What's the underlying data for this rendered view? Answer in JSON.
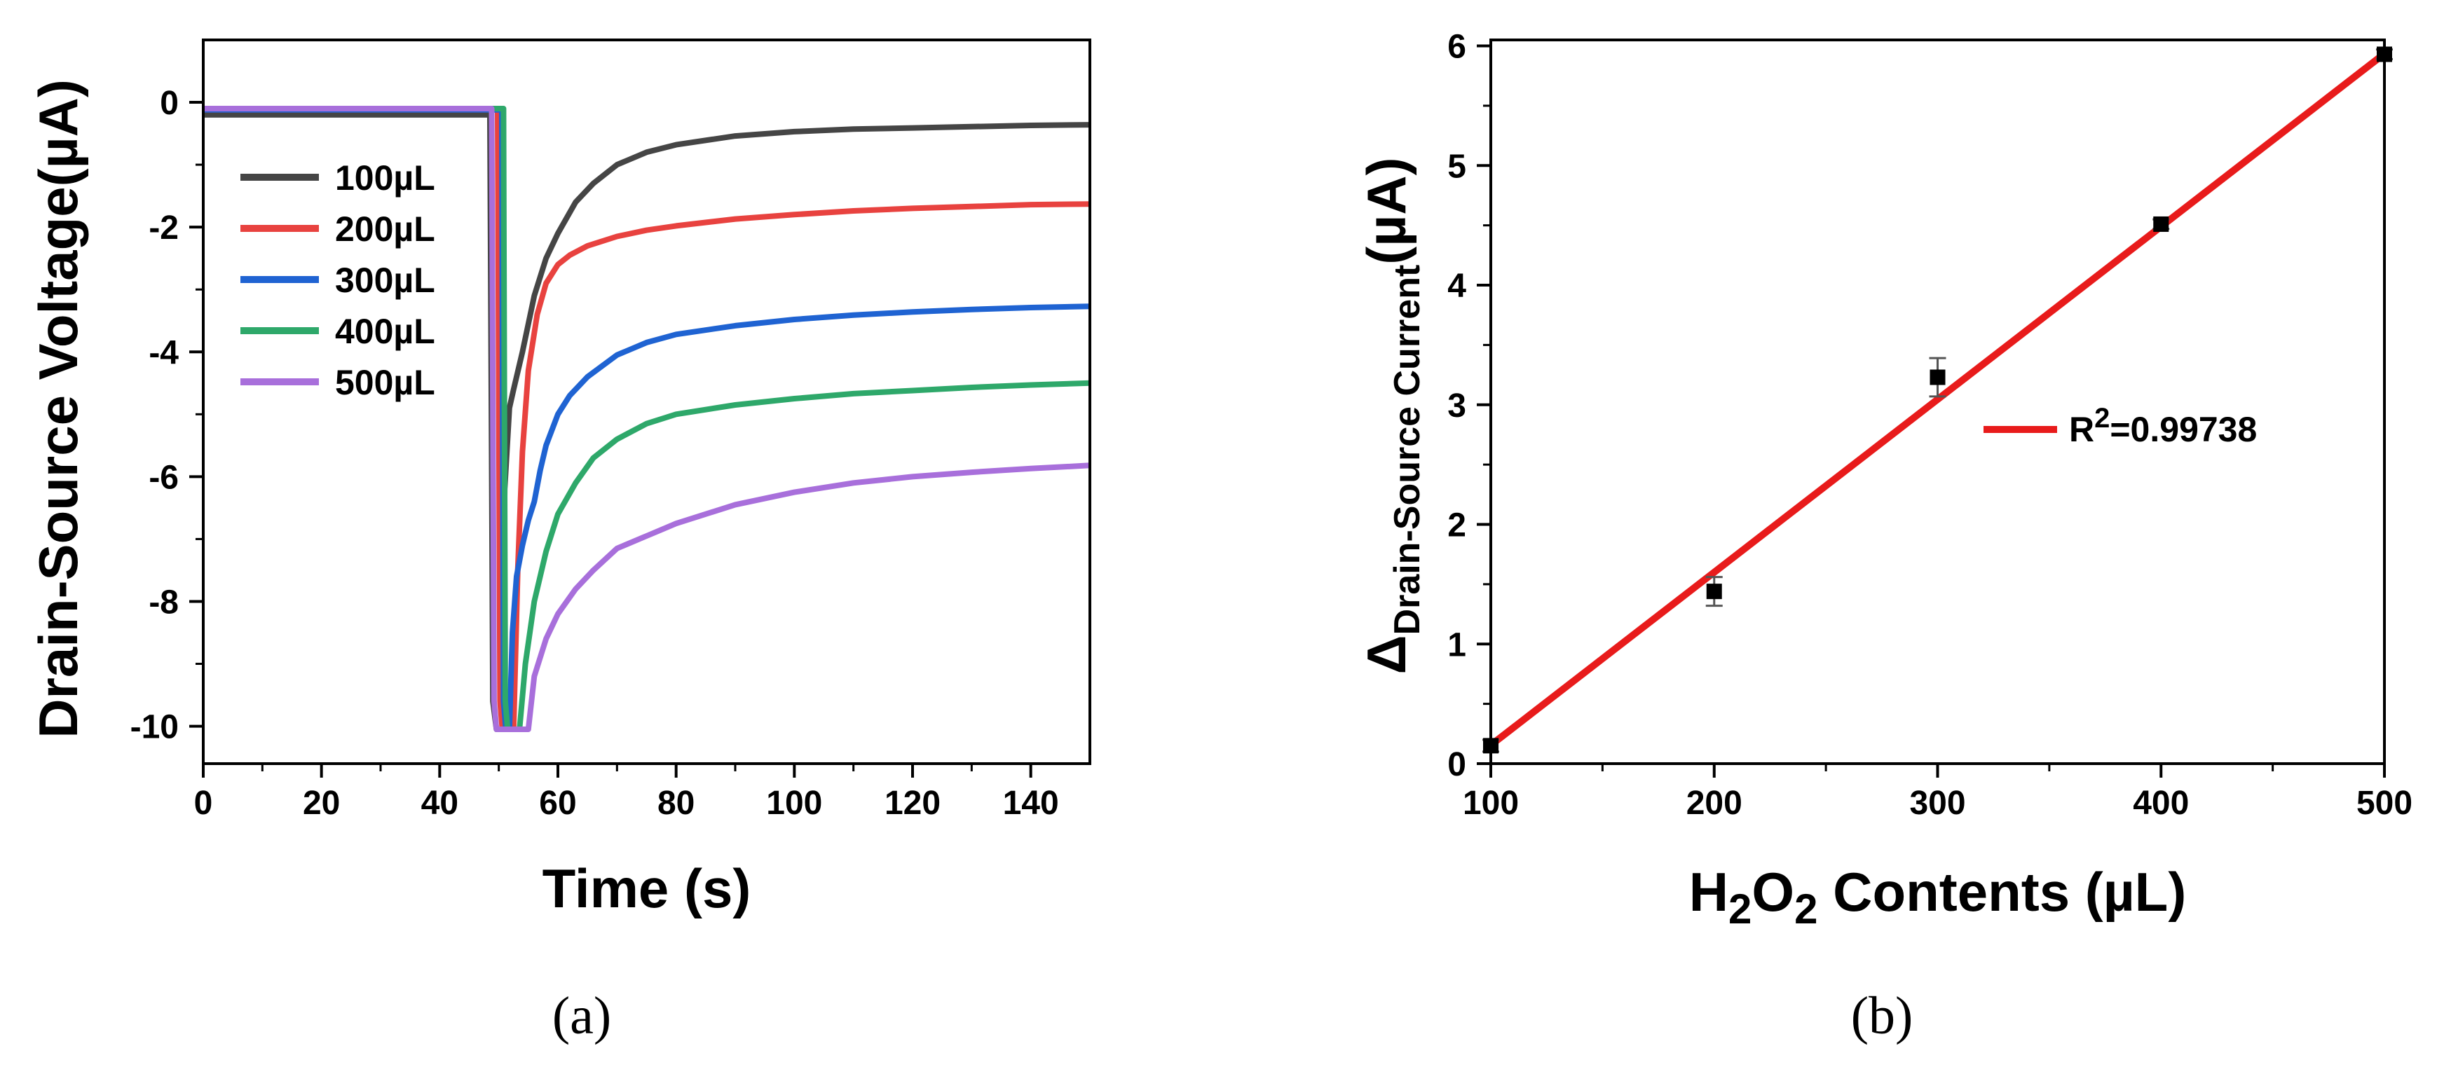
{
  "captions": {
    "a": "(a)",
    "b": "(b)"
  },
  "chart_data": [
    {
      "type": "line",
      "panel": "(a)",
      "title": "",
      "xlabel": "Time (s)",
      "ylabel": "Drain-Source Voltage(µA)",
      "xlim": [
        0,
        150
      ],
      "ylim": [
        -10.6,
        1.0
      ],
      "xticks": [
        0,
        20,
        40,
        60,
        80,
        100,
        120,
        140
      ],
      "yticks": [
        0,
        -2,
        -4,
        -6,
        -8,
        -10
      ],
      "legend_position": "upper-left",
      "series": [
        {
          "name": "100µL",
          "color": "#454545",
          "points": [
            [
              0,
              -0.2
            ],
            [
              48.5,
              -0.2
            ],
            [
              49,
              -9.6
            ],
            [
              49.6,
              -10.05
            ],
            [
              50.6,
              -10.05
            ],
            [
              51,
              -6.2
            ],
            [
              51.8,
              -4.9
            ],
            [
              52.5,
              -4.6
            ],
            [
              54,
              -4.0
            ],
            [
              56,
              -3.1
            ],
            [
              58,
              -2.5
            ],
            [
              60,
              -2.1
            ],
            [
              63,
              -1.6
            ],
            [
              66,
              -1.3
            ],
            [
              70,
              -1.0
            ],
            [
              75,
              -0.8
            ],
            [
              80,
              -0.68
            ],
            [
              90,
              -0.54
            ],
            [
              100,
              -0.47
            ],
            [
              110,
              -0.43
            ],
            [
              120,
              -0.41
            ],
            [
              130,
              -0.39
            ],
            [
              140,
              -0.37
            ],
            [
              150,
              -0.36
            ]
          ]
        },
        {
          "name": "200µL",
          "color": "#e8423f",
          "points": [
            [
              0,
              -0.12
            ],
            [
              49.8,
              -0.12
            ],
            [
              50.2,
              -9.6
            ],
            [
              50.6,
              -10.05
            ],
            [
              52.5,
              -10.05
            ],
            [
              53.2,
              -7.5
            ],
            [
              54,
              -5.6
            ],
            [
              55,
              -4.3
            ],
            [
              56.5,
              -3.4
            ],
            [
              58,
              -2.9
            ],
            [
              60,
              -2.6
            ],
            [
              62,
              -2.45
            ],
            [
              65,
              -2.3
            ],
            [
              70,
              -2.15
            ],
            [
              75,
              -2.05
            ],
            [
              80,
              -1.98
            ],
            [
              90,
              -1.87
            ],
            [
              100,
              -1.8
            ],
            [
              110,
              -1.74
            ],
            [
              120,
              -1.7
            ],
            [
              130,
              -1.67
            ],
            [
              140,
              -1.64
            ],
            [
              150,
              -1.63
            ]
          ]
        },
        {
          "name": "300µL",
          "color": "#1f63d2",
          "points": [
            [
              0,
              -0.12
            ],
            [
              50.5,
              -0.12
            ],
            [
              50.8,
              -9.6
            ],
            [
              51.2,
              -10.05
            ],
            [
              51.8,
              -10.05
            ],
            [
              52.3,
              -8.5
            ],
            [
              53,
              -7.6
            ],
            [
              54,
              -7.1
            ],
            [
              55,
              -6.7
            ],
            [
              56,
              -6.4
            ],
            [
              57,
              -5.9
            ],
            [
              58,
              -5.5
            ],
            [
              60,
              -5.0
            ],
            [
              62,
              -4.7
            ],
            [
              65,
              -4.4
            ],
            [
              70,
              -4.05
            ],
            [
              75,
              -3.85
            ],
            [
              80,
              -3.72
            ],
            [
              90,
              -3.58
            ],
            [
              100,
              -3.48
            ],
            [
              110,
              -3.41
            ],
            [
              120,
              -3.36
            ],
            [
              130,
              -3.32
            ],
            [
              140,
              -3.29
            ],
            [
              150,
              -3.27
            ]
          ]
        },
        {
          "name": "400µL",
          "color": "#2ea86a",
          "points": [
            [
              0,
              -0.1
            ],
            [
              50.8,
              -0.1
            ],
            [
              51.1,
              -9.6
            ],
            [
              51.5,
              -10.05
            ],
            [
              53.5,
              -10.05
            ],
            [
              54.5,
              -9.0
            ],
            [
              56,
              -8.0
            ],
            [
              58,
              -7.2
            ],
            [
              60,
              -6.6
            ],
            [
              63,
              -6.1
            ],
            [
              66,
              -5.7
            ],
            [
              70,
              -5.4
            ],
            [
              75,
              -5.15
            ],
            [
              80,
              -5.0
            ],
            [
              90,
              -4.85
            ],
            [
              100,
              -4.75
            ],
            [
              110,
              -4.67
            ],
            [
              120,
              -4.62
            ],
            [
              130,
              -4.57
            ],
            [
              140,
              -4.53
            ],
            [
              150,
              -4.5
            ]
          ]
        },
        {
          "name": "500µL",
          "color": "#a86fdb",
          "points": [
            [
              0,
              -0.1
            ],
            [
              48.8,
              -0.1
            ],
            [
              49.2,
              -9.6
            ],
            [
              49.6,
              -10.05
            ],
            [
              55,
              -10.05
            ],
            [
              56,
              -9.2
            ],
            [
              58,
              -8.6
            ],
            [
              60,
              -8.2
            ],
            [
              63,
              -7.8
            ],
            [
              66,
              -7.5
            ],
            [
              70,
              -7.15
            ],
            [
              75,
              -6.95
            ],
            [
              80,
              -6.75
            ],
            [
              90,
              -6.45
            ],
            [
              100,
              -6.25
            ],
            [
              110,
              -6.1
            ],
            [
              120,
              -6.0
            ],
            [
              130,
              -5.93
            ],
            [
              140,
              -5.87
            ],
            [
              150,
              -5.82
            ]
          ]
        }
      ]
    },
    {
      "type": "scatter",
      "panel": "(b)",
      "title": "",
      "xlabel_parts": [
        "H",
        "2",
        "O",
        "2",
        " Contents (µL)"
      ],
      "ylabel_parts": [
        "Δ",
        "Drain-Source Current",
        "(µA)"
      ],
      "xlim": [
        100,
        500
      ],
      "ylim": [
        0,
        6.05
      ],
      "xticks": [
        100,
        200,
        300,
        400,
        500
      ],
      "yticks": [
        0,
        1,
        2,
        3,
        4,
        5,
        6
      ],
      "points": [
        {
          "x": 100,
          "y": 0.15,
          "err": 0.05
        },
        {
          "x": 200,
          "y": 1.44,
          "err": 0.12
        },
        {
          "x": 300,
          "y": 3.23,
          "err": 0.16
        },
        {
          "x": 400,
          "y": 4.51,
          "err": 0.04
        },
        {
          "x": 500,
          "y": 5.93,
          "err": 0.04
        }
      ],
      "fit": {
        "slope": 0.01445,
        "intercept": -1.29,
        "color": "#e81b1b"
      },
      "legend": {
        "prefix": "R",
        "sup": "2",
        "suffix": "=0.99738",
        "position": "center-right"
      }
    }
  ]
}
